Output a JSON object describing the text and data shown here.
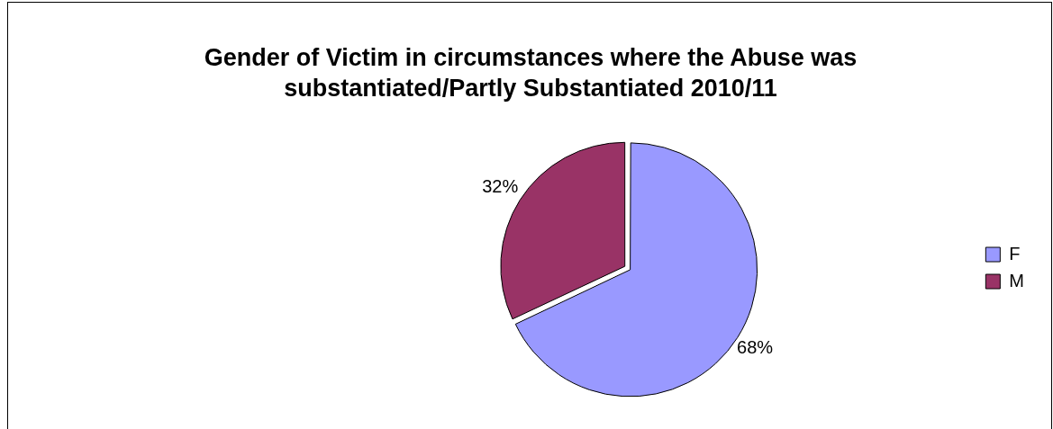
{
  "chart_data": {
    "type": "pie",
    "title": "Gender of Victim in circumstances where the Abuse was substantiated/Partly Substantiated 2010/11",
    "categories": [
      "F",
      "M"
    ],
    "values": [
      68,
      32
    ],
    "colors": [
      "#9999ff",
      "#993366"
    ],
    "value_labels": [
      "68%",
      "32%"
    ],
    "legend": "right"
  }
}
